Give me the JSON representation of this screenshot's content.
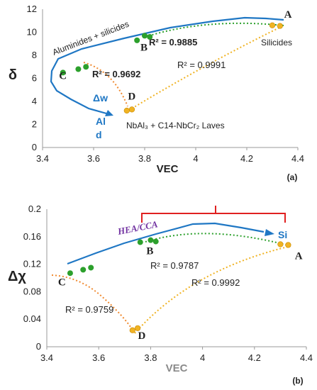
{
  "chart_data": [
    {
      "type": "scatter",
      "panel": "(a)",
      "xlabel": "VEC",
      "ylabel": "δ",
      "xlim": [
        3.4,
        4.4
      ],
      "ylim": [
        0,
        12
      ],
      "xticks": [
        "3.4",
        "3.6",
        "3.8",
        "4",
        "4.2",
        "4.4"
      ],
      "yticks": [
        "0",
        "2",
        "4",
        "6",
        "8",
        "10",
        "12"
      ],
      "grid": false,
      "points": [
        {
          "label": "A",
          "x": 4.31,
          "y": 10.6
        },
        {
          "label": "B",
          "x": 3.8,
          "y": 9.5
        },
        {
          "label": "C",
          "x": 3.52,
          "y": 6.8
        },
        {
          "label": "D",
          "x": 3.74,
          "y": 3.3
        }
      ],
      "green_points": [
        {
          "x": 3.48,
          "y": 6.5
        },
        {
          "x": 3.54,
          "y": 6.8
        },
        {
          "x": 3.57,
          "y": 7.0
        },
        {
          "x": 3.77,
          "y": 9.3
        },
        {
          "x": 3.8,
          "y": 9.7
        },
        {
          "x": 3.82,
          "y": 9.6
        }
      ],
      "yellow_points": [
        {
          "x": 3.73,
          "y": 3.2
        },
        {
          "x": 3.75,
          "y": 3.3
        },
        {
          "x": 4.3,
          "y": 10.6
        },
        {
          "x": 4.33,
          "y": 10.55
        }
      ],
      "fits": [
        {
          "through": "A-B",
          "r2_text": "R² = 0.9885"
        },
        {
          "through": "C-D",
          "r2_text": "R² = 0.9692"
        },
        {
          "through": "D-A",
          "r2_text": "R² = 0.9991"
        }
      ],
      "annotations": {
        "upper_region": "Aluminides + silicides",
        "right_region": "Silicides",
        "lower_region": "NbAl₃ + C14-NbCr₂ Laves",
        "arrow_label_1": "Δw",
        "arrow_label_2": "Al",
        "arrow_label_3": "d"
      }
    },
    {
      "type": "scatter",
      "panel": "(b)",
      "xlabel": "VEC",
      "ylabel": "Δχ",
      "xlim": [
        3.4,
        4.4
      ],
      "ylim": [
        0,
        0.2
      ],
      "xticks": [
        "3.4",
        "3.6",
        "3.8",
        "4",
        "4.2",
        "4.4"
      ],
      "yticks": [
        "0",
        "0.04",
        "0.08",
        "0.12",
        "0.16",
        "0.2"
      ],
      "grid": false,
      "points": [
        {
          "label": "A",
          "x": 4.32,
          "y": 0.148
        },
        {
          "label": "B",
          "x": 3.8,
          "y": 0.155
        },
        {
          "label": "C",
          "x": 3.52,
          "y": 0.11
        },
        {
          "label": "D",
          "x": 3.74,
          "y": 0.025
        }
      ],
      "green_points": [
        {
          "x": 3.49,
          "y": 0.107
        },
        {
          "x": 3.54,
          "y": 0.112
        },
        {
          "x": 3.57,
          "y": 0.115
        },
        {
          "x": 3.76,
          "y": 0.152
        },
        {
          "x": 3.8,
          "y": 0.155
        },
        {
          "x": 3.82,
          "y": 0.153
        }
      ],
      "yellow_points": [
        {
          "x": 3.73,
          "y": 0.024
        },
        {
          "x": 3.75,
          "y": 0.027
        },
        {
          "x": 4.3,
          "y": 0.149
        },
        {
          "x": 4.33,
          "y": 0.148
        }
      ],
      "fits": [
        {
          "through": "A-B",
          "r2_text": "R² = 0.9787"
        },
        {
          "through": "C-D",
          "r2_text": "R² = 0.9759"
        },
        {
          "through": "D-A",
          "r2_text": "R² = 0.9992"
        }
      ],
      "annotations": {
        "region_label": "HEA/CCA",
        "arrow_end_label": "Si"
      }
    }
  ],
  "colors": {
    "blue": "#1f77c4",
    "green": "#2ca02c",
    "yellow": "#f0b323",
    "orange_dotted": "#f08a30",
    "red_bracket": "#e02020",
    "purple": "#7030a0",
    "axis": "#999999"
  }
}
